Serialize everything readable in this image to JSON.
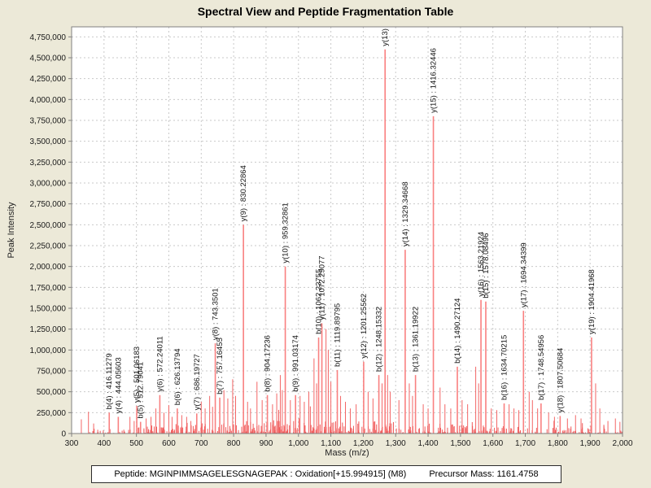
{
  "window": {
    "background": "#ECE9D8"
  },
  "chart_data": {
    "type": "bar",
    "subtype": "mass-spectrum",
    "title": "Spectral View and Peptide Fragmentation Table",
    "xlabel": "Mass (m/z)",
    "ylabel": "Peak Intensity",
    "xlim": [
      300,
      2000
    ],
    "ylim": [
      0,
      4870000
    ],
    "grid": true,
    "colors": {
      "peak_labeled": "#f98080",
      "peak_medium": "#f36666",
      "peak_noise": "#ef5a5a",
      "gridline": "#c9c9c9",
      "axis": "#808080",
      "plot_background": "#ffffff",
      "label_text": "#141414"
    },
    "xticks": {
      "values": [
        300,
        400,
        500,
        600,
        700,
        800,
        900,
        1000,
        1100,
        1200,
        1300,
        1400,
        1500,
        1600,
        1700,
        1800,
        1900,
        2000
      ],
      "labels": [
        "300",
        "400",
        "500",
        "600",
        "700",
        "800",
        "900",
        "1,000",
        "1,100",
        "1,200",
        "1,300",
        "1,400",
        "1,500",
        "1,600",
        "1,700",
        "1,800",
        "1,900",
        "2,000"
      ]
    },
    "yticks": {
      "values": [
        0,
        250000,
        500000,
        750000,
        1000000,
        1250000,
        1500000,
        1750000,
        2000000,
        2250000,
        2500000,
        2750000,
        3000000,
        3250000,
        3500000,
        3750000,
        4000000,
        4250000,
        4500000,
        4750000
      ],
      "labels": [
        "0",
        "250,000",
        "500,000",
        "750,000",
        "1,000,000",
        "1,250,000",
        "1,500,000",
        "1,750,000",
        "2,000,000",
        "2,250,000",
        "2,500,000",
        "2,750,000",
        "3,000,000",
        "3,250,000",
        "3,500,000",
        "3,750,000",
        "4,000,000",
        "4,250,000",
        "4,500,000",
        "4,750,000"
      ]
    },
    "labeled_peaks": [
      {
        "label": "b(4) : 416.11279",
        "mz": 416.11279,
        "intensity": 250000
      },
      {
        "label": "y(4) : 444.05603",
        "mz": 444.05603,
        "intensity": 200000
      },
      {
        "label": "y(5) : 501.06183",
        "mz": 501.06183,
        "intensity": 330000
      },
      {
        "label": "b(5) : 512.79041",
        "mz": 512.79041,
        "intensity": 140000
      },
      {
        "label": "y(6) : 572.24011",
        "mz": 572.24011,
        "intensity": 460000
      },
      {
        "label": "b(6) : 626.13794",
        "mz": 626.13794,
        "intensity": 300000
      },
      {
        "label": "y(7) : 686.19727",
        "mz": 686.19727,
        "intensity": 240000
      },
      {
        "label": "y(8) : 743.3501",
        "mz": 743.3501,
        "intensity": 1080000
      },
      {
        "label": "b(7) : 757.16455",
        "mz": 757.16455,
        "intensity": 430000
      },
      {
        "label": "y(9) : 830.22864",
        "mz": 830.22864,
        "intensity": 2500000
      },
      {
        "label": "b(8) : 904.17236",
        "mz": 904.17236,
        "intensity": 460000
      },
      {
        "label": "y(10) : 959.32861",
        "mz": 959.32861,
        "intensity": 2000000
      },
      {
        "label": "b(9) : 991.03174",
        "mz": 991.03174,
        "intensity": 460000
      },
      {
        "label": "b(10) : 1062.23755",
        "mz": 1062.23755,
        "intensity": 1150000
      },
      {
        "label": "y(11) : 1072.29077",
        "mz": 1072.29077,
        "intensity": 1320000
      },
      {
        "label": "b(11) : 1119.89795",
        "mz": 1119.89795,
        "intensity": 760000
      },
      {
        "label": "y(12) : 1201.25562",
        "mz": 1201.25562,
        "intensity": 860000
      },
      {
        "label": "b(12) : 1248.15332",
        "mz": 1248.15332,
        "intensity": 700000
      },
      {
        "label": "y(13)",
        "mz": 1267.3,
        "intensity": 4600000
      },
      {
        "label": "y(14) : 1329.34668",
        "mz": 1329.34668,
        "intensity": 2200000
      },
      {
        "label": "b(13) : 1361.19922",
        "mz": 1361.19922,
        "intensity": 700000
      },
      {
        "label": "y(15) : 1416.32446",
        "mz": 1416.32446,
        "intensity": 3800000
      },
      {
        "label": "b(14) : 1490.27124",
        "mz": 1490.27124,
        "intensity": 800000
      },
      {
        "label": "y(16) : 1563.21924",
        "mz": 1563.21924,
        "intensity": 1600000
      },
      {
        "label": "b(15) : 1578.08496",
        "mz": 1578.08496,
        "intensity": 1580000
      },
      {
        "label": "b(16) : 1634.70215",
        "mz": 1634.70215,
        "intensity": 360000
      },
      {
        "label": "y(17) : 1694.34399",
        "mz": 1694.34399,
        "intensity": 1470000
      },
      {
        "label": "b(17) : 1748.54956",
        "mz": 1748.54956,
        "intensity": 360000
      },
      {
        "label": "y(18) : 1807.50684",
        "mz": 1807.50684,
        "intensity": 210000
      },
      {
        "label": "y(19) : 1904.41968",
        "mz": 1904.41968,
        "intensity": 1150000
      }
    ],
    "unlabeled_peaks": [
      [
        330,
        170000
      ],
      [
        352,
        260000
      ],
      [
        368,
        120000
      ],
      [
        480,
        200000
      ],
      [
        493,
        150000
      ],
      [
        530,
        180000
      ],
      [
        545,
        200000
      ],
      [
        560,
        300000
      ],
      [
        585,
        250000
      ],
      [
        600,
        340000
      ],
      [
        610,
        200000
      ],
      [
        640,
        220000
      ],
      [
        655,
        200000
      ],
      [
        668,
        150000
      ],
      [
        700,
        380000
      ],
      [
        712,
        300000
      ],
      [
        726,
        450000
      ],
      [
        735,
        320000
      ],
      [
        770,
        520000
      ],
      [
        782,
        420000
      ],
      [
        797,
        650000
      ],
      [
        806,
        450000
      ],
      [
        843,
        380000
      ],
      [
        852,
        300000
      ],
      [
        872,
        620000
      ],
      [
        888,
        400000
      ],
      [
        920,
        350000
      ],
      [
        933,
        480000
      ],
      [
        944,
        700000
      ],
      [
        950,
        520000
      ],
      [
        975,
        400000
      ],
      [
        1005,
        450000
      ],
      [
        1018,
        380000
      ],
      [
        1032,
        500000
      ],
      [
        1048,
        900000
      ],
      [
        1056,
        600000
      ],
      [
        1085,
        1250000
      ],
      [
        1092,
        1000000
      ],
      [
        1100,
        620000
      ],
      [
        1130,
        450000
      ],
      [
        1145,
        380000
      ],
      [
        1160,
        300000
      ],
      [
        1178,
        350000
      ],
      [
        1215,
        500000
      ],
      [
        1230,
        420000
      ],
      [
        1258,
        600000
      ],
      [
        1275,
        700000
      ],
      [
        1283,
        500000
      ],
      [
        1310,
        400000
      ],
      [
        1342,
        600000
      ],
      [
        1352,
        450000
      ],
      [
        1385,
        350000
      ],
      [
        1400,
        300000
      ],
      [
        1437,
        550000
      ],
      [
        1452,
        350000
      ],
      [
        1470,
        300000
      ],
      [
        1505,
        400000
      ],
      [
        1522,
        350000
      ],
      [
        1547,
        800000
      ],
      [
        1556,
        600000
      ],
      [
        1595,
        300000
      ],
      [
        1612,
        280000
      ],
      [
        1650,
        350000
      ],
      [
        1665,
        300000
      ],
      [
        1680,
        280000
      ],
      [
        1712,
        500000
      ],
      [
        1722,
        400000
      ],
      [
        1738,
        300000
      ],
      [
        1772,
        250000
      ],
      [
        1790,
        200000
      ],
      [
        1830,
        180000
      ],
      [
        1855,
        220000
      ],
      [
        1872,
        180000
      ],
      [
        1917,
        600000
      ],
      [
        1930,
        300000
      ],
      [
        1955,
        150000
      ],
      [
        1978,
        180000
      ],
      [
        1992,
        140000
      ]
    ],
    "noise": {
      "seed": 987654321,
      "count": 620,
      "mz_range": [
        352,
        1998
      ],
      "max_intensity": 160000
    }
  },
  "footer": {
    "peptide_label": "Peptide: MGINPIMMSAGELESGNAGEPAK : Oxidation[+15.994915] (M8)",
    "precursor_label": "Precursor Mass: 1161.4758"
  }
}
